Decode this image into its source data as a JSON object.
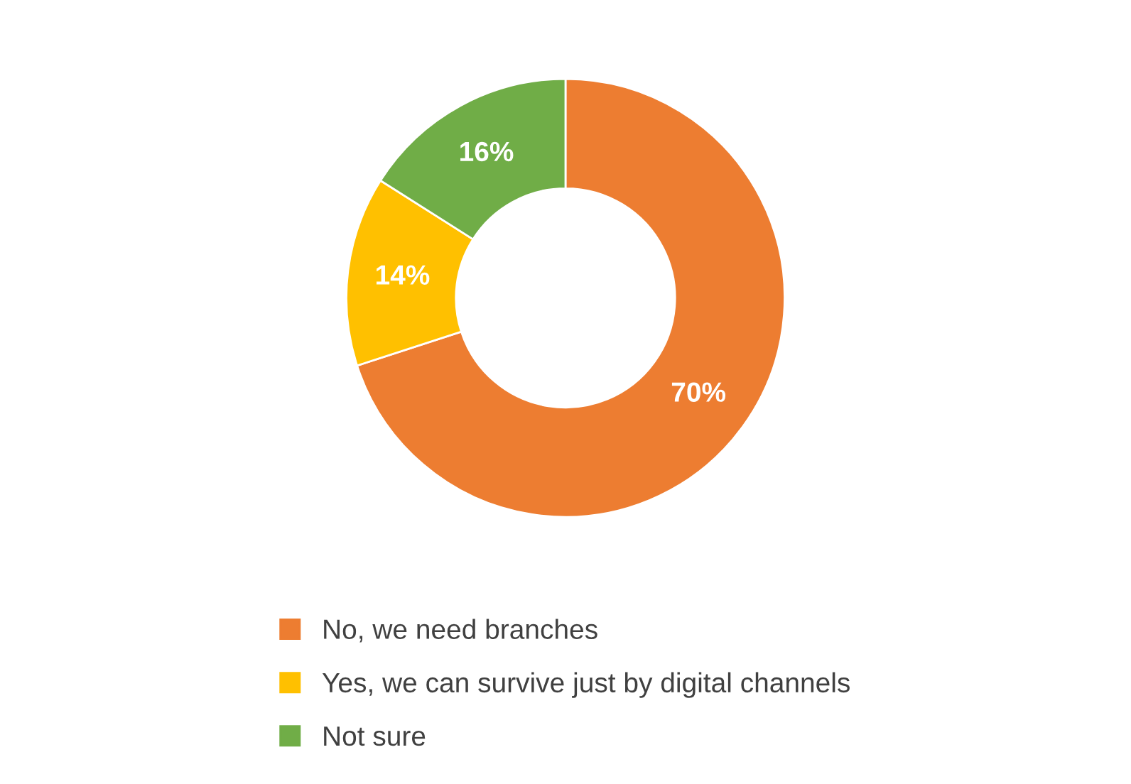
{
  "chart_data": {
    "type": "donut",
    "categories": [
      "No, we need branches",
      "Yes, we can survive just by digital channels",
      "Not sure"
    ],
    "values": [
      70,
      14,
      16
    ],
    "colors": [
      "#ed7d31",
      "#ffc000",
      "#70ad47"
    ],
    "value_labels": [
      "70%",
      "14%",
      "16%"
    ],
    "legend": "bottom"
  }
}
